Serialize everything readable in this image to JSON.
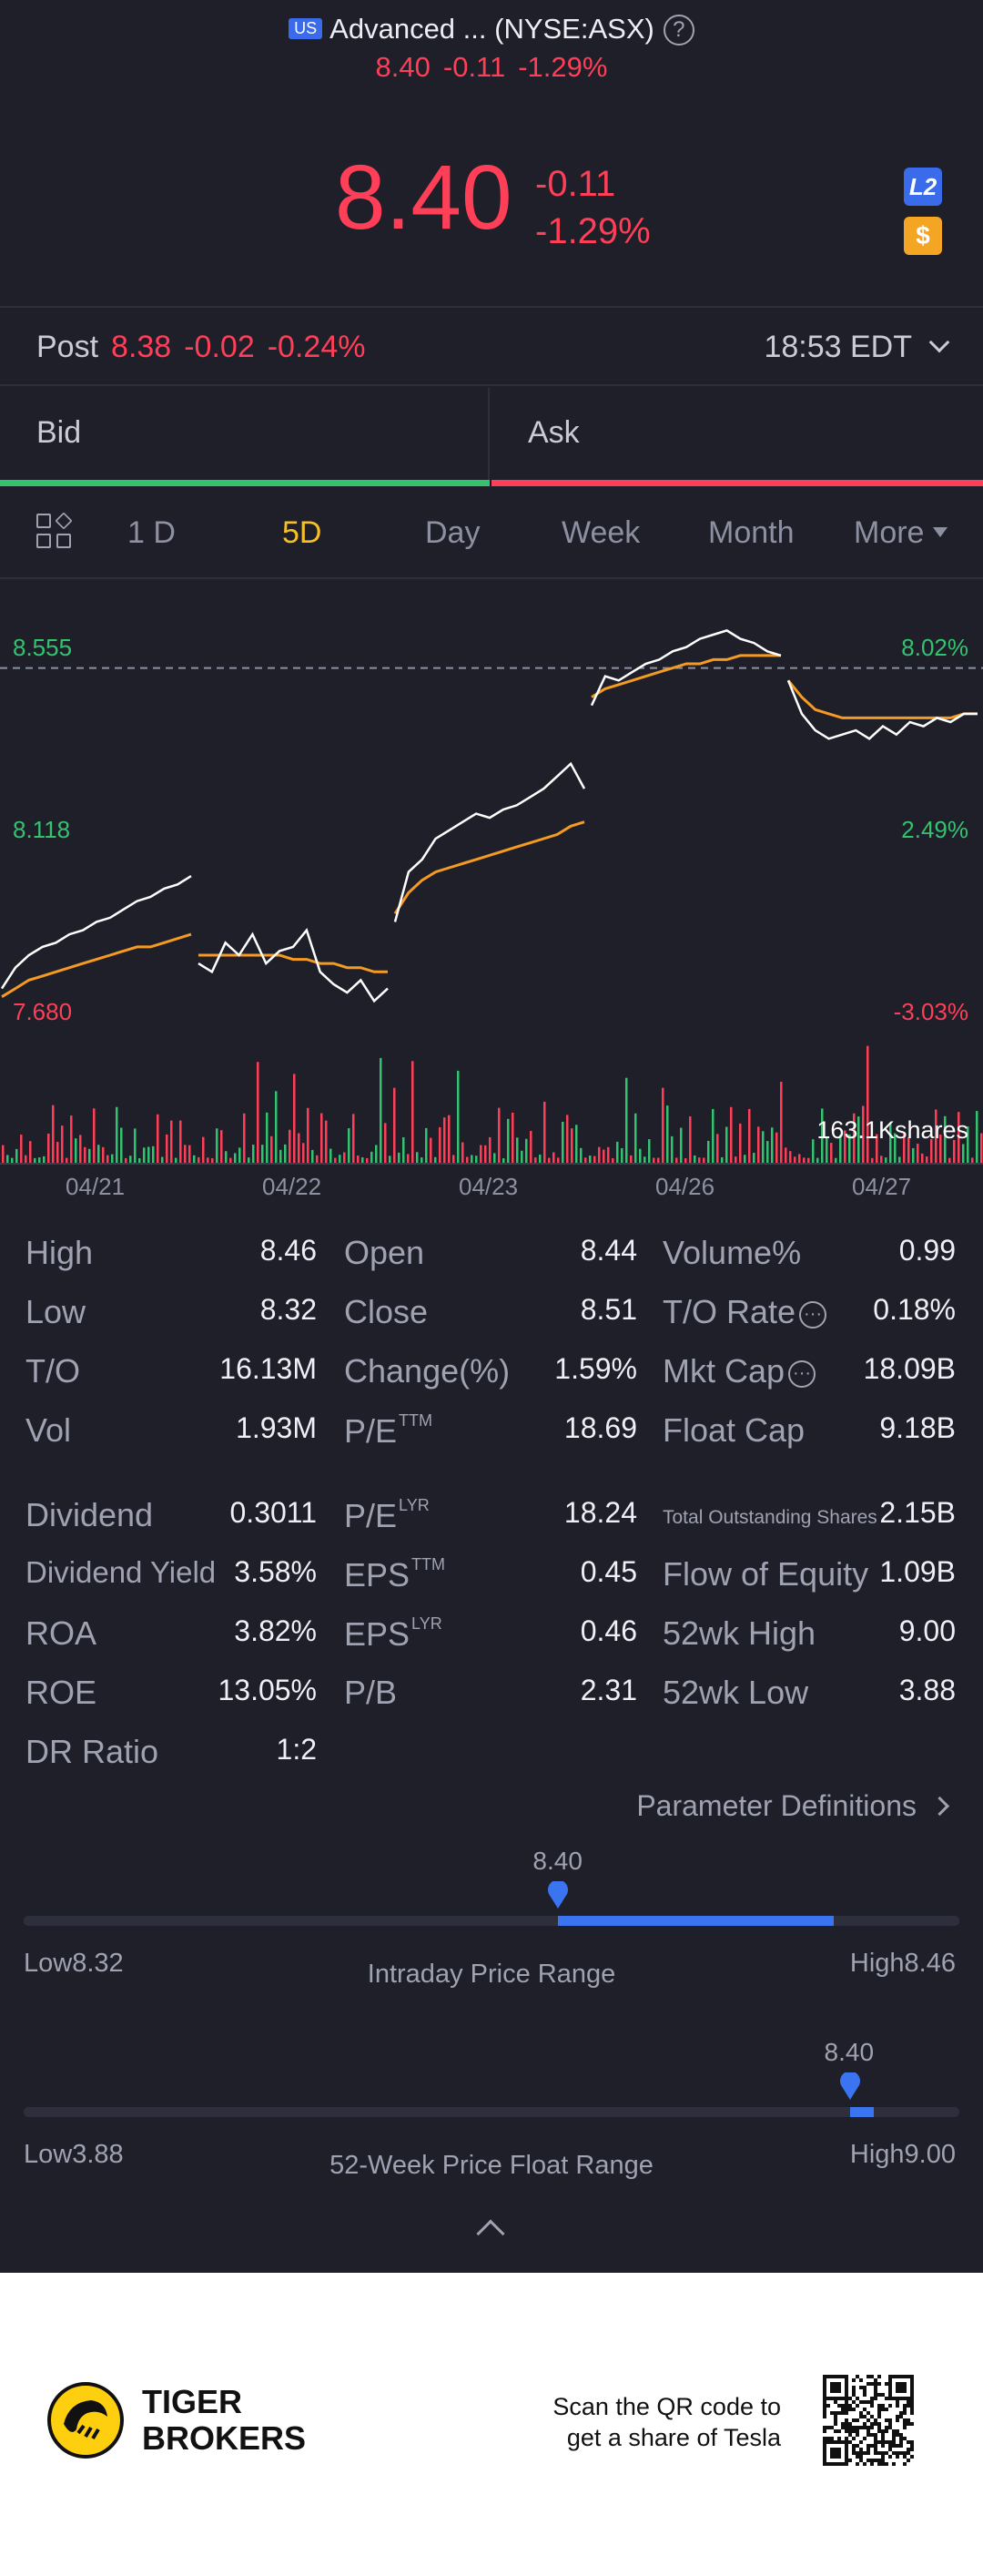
{
  "header": {
    "flag": "US",
    "title": "Advanced ... (NYSE:ASX)",
    "help": "?",
    "price": "8.40",
    "change": "-0.11",
    "change_pct": "-1.29%"
  },
  "quote": {
    "price": "8.40",
    "change": "-0.11",
    "change_pct": "-1.29%",
    "badge_l2": "L2",
    "badge_dollar": "$"
  },
  "post": {
    "label": "Post",
    "price": "8.38",
    "change": "-0.02",
    "change_pct": "-0.24%",
    "time": "18:53 EDT"
  },
  "bidask": {
    "bid": "Bid",
    "ask": "Ask"
  },
  "tabs": {
    "t1": "1 D",
    "t2": "5D",
    "t3": "Day",
    "t4": "Week",
    "t5": "Month",
    "t6": "More",
    "active": "5D"
  },
  "chart_data": {
    "type": "line",
    "y_left_ticks": [
      "8.555",
      "8.118",
      "7.680"
    ],
    "y_right_ticks": [
      "8.02%",
      "2.49%",
      "-3.03%"
    ],
    "x_ticks": [
      "04/21",
      "04/22",
      "04/23",
      "04/26",
      "04/27"
    ],
    "prev_close": 8.51,
    "volume_label": "163.1Kshares",
    "series": [
      {
        "days": [
          {
            "price": [
              7.74,
              7.79,
              7.82,
              7.84,
              7.85,
              7.87,
              7.88,
              7.9,
              7.91,
              7.93,
              7.95,
              7.96,
              7.98,
              7.99,
              8.01
            ],
            "avg": [
              7.72,
              7.74,
              7.76,
              7.77,
              7.78,
              7.79,
              7.8,
              7.81,
              7.82,
              7.83,
              7.84,
              7.84,
              7.85,
              7.86,
              7.87
            ]
          },
          {
            "price": [
              7.8,
              7.78,
              7.85,
              7.82,
              7.87,
              7.8,
              7.83,
              7.84,
              7.88,
              7.78,
              7.75,
              7.73,
              7.76,
              7.71,
              7.74
            ],
            "avg": [
              7.82,
              7.82,
              7.82,
              7.82,
              7.82,
              7.82,
              7.82,
              7.81,
              7.81,
              7.8,
              7.8,
              7.79,
              7.79,
              7.78,
              7.78
            ]
          },
          {
            "price": [
              7.9,
              8.02,
              8.05,
              8.1,
              8.12,
              8.14,
              8.16,
              8.15,
              8.17,
              8.18,
              8.2,
              8.22,
              8.25,
              8.28,
              8.22
            ],
            "avg": [
              7.92,
              7.97,
              8.0,
              8.02,
              8.03,
              8.04,
              8.05,
              8.06,
              8.07,
              8.08,
              8.09,
              8.1,
              8.11,
              8.13,
              8.14
            ]
          },
          {
            "price": [
              8.42,
              8.49,
              8.48,
              8.5,
              8.52,
              8.53,
              8.55,
              8.56,
              8.58,
              8.59,
              8.6,
              8.58,
              8.57,
              8.55,
              8.54
            ],
            "avg": [
              8.44,
              8.46,
              8.47,
              8.48,
              8.49,
              8.5,
              8.51,
              8.52,
              8.52,
              8.53,
              8.53,
              8.54,
              8.54,
              8.54,
              8.54
            ]
          },
          {
            "price": [
              8.48,
              8.4,
              8.36,
              8.34,
              8.35,
              8.36,
              8.34,
              8.37,
              8.35,
              8.38,
              8.37,
              8.39,
              8.38,
              8.4,
              8.4
            ],
            "avg": [
              8.48,
              8.44,
              8.41,
              8.4,
              8.39,
              8.39,
              8.39,
              8.39,
              8.39,
              8.39,
              8.39,
              8.39,
              8.39,
              8.4,
              8.4
            ]
          }
        ]
      }
    ]
  },
  "stats": [
    [
      {
        "l": "High",
        "v": "8.46"
      },
      {
        "l": "Open",
        "v": "8.44"
      },
      {
        "l": "Volume%",
        "v": "0.99"
      }
    ],
    [
      {
        "l": "Low",
        "v": "8.32"
      },
      {
        "l": "Close",
        "v": "8.51"
      },
      {
        "l": "T/O Rate",
        "v": "0.18%"
      }
    ],
    [
      {
        "l": "T/O",
        "v": "16.13M"
      },
      {
        "l": "Change(%)",
        "v": "1.59%"
      },
      {
        "l": "Mkt Cap",
        "v": "18.09B"
      }
    ],
    [
      {
        "l": "Vol",
        "v": "1.93M"
      },
      {
        "l": "P/E",
        "v": "18.69"
      },
      {
        "l": "Float Cap",
        "v": "9.18B"
      }
    ],
    [
      {
        "l": "Dividend",
        "v": "0.3011"
      },
      {
        "l": "P/E",
        "v": "18.24"
      },
      {
        "l": "Total Outstanding Shares",
        "v": "2.15B"
      }
    ],
    [
      {
        "l": "Dividend Yield",
        "v": "3.58%"
      },
      {
        "l": "EPS",
        "v": "0.45"
      },
      {
        "l": "Flow of Equity",
        "v": "1.09B"
      }
    ],
    [
      {
        "l": "ROA",
        "v": "3.82%"
      },
      {
        "l": "EPS",
        "v": "0.46"
      },
      {
        "l": "52wk High",
        "v": "9.00"
      }
    ],
    [
      {
        "l": "ROE",
        "v": "13.05%"
      },
      {
        "l": "P/B",
        "v": "2.31"
      },
      {
        "l": "52wk Low",
        "v": "3.88"
      }
    ],
    [
      {
        "l": "DR Ratio",
        "v": "1:2"
      }
    ]
  ],
  "sup": {
    "ttm": "TTM",
    "lyr": "LYR"
  },
  "param_definitions": "Parameter Definitions",
  "intraday": {
    "value": "8.40",
    "low": "Low8.32",
    "high": "High8.46",
    "title": "Intraday Price Range",
    "low_n": 8.32,
    "high_n": 8.46,
    "cur_n": 8.4
  },
  "week52": {
    "value": "8.40",
    "low": "Low3.88",
    "high": "High9.00",
    "title": "52-Week Price Float Range",
    "low_n": 3.88,
    "high_n": 9.0,
    "cur_n": 8.4
  },
  "footer": {
    "brand_line1": "TIGER",
    "brand_line2": "BROKERS",
    "scan_line1": "Scan the QR code to",
    "scan_line2": "get a share of Tesla"
  },
  "colors": {
    "red": "#ff3f58",
    "green": "#33c36e",
    "accent": "#f5c027",
    "blue": "#3a74f0",
    "avg": "#f59a23"
  }
}
